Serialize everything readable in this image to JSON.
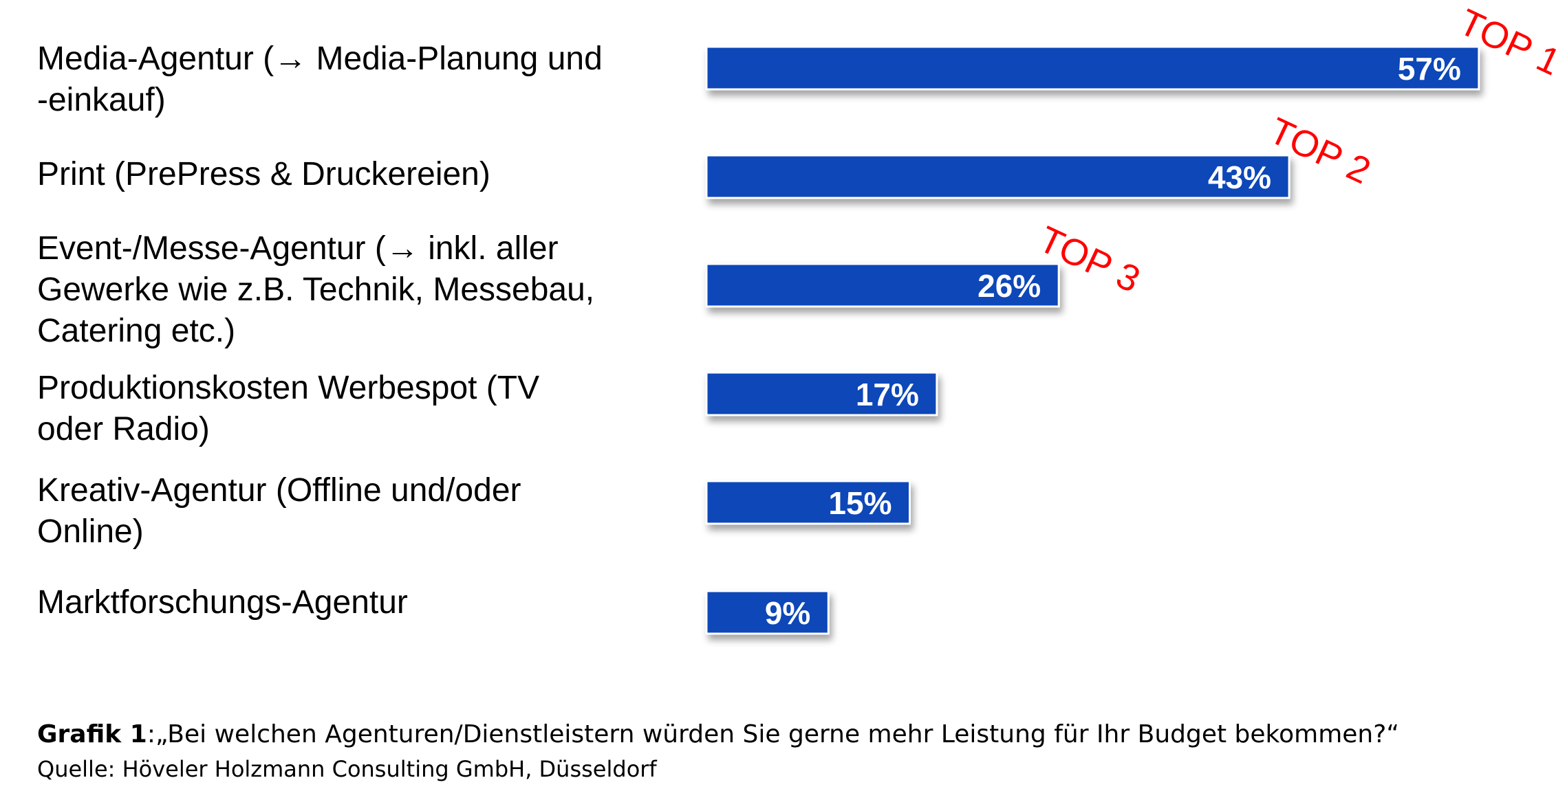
{
  "chart_data": {
    "type": "bar",
    "orientation": "horizontal",
    "categories": [
      "Media-Agentur (→ Media-Planung und\n-einkauf)",
      "Print (PrePress & Druckereien)",
      "Event-/Messe-Agentur (→ inkl. aller\nGewerke wie z.B. Technik, Messebau,\nCatering etc.)",
      "Produktionskosten Werbespot (TV\noder Radio)",
      "Kreativ-Agentur (Offline und/oder\nOnline)",
      "Marktforschungs-Agentur"
    ],
    "values": [
      57,
      43,
      26,
      17,
      15,
      9
    ],
    "value_labels": [
      "57%",
      "43%",
      "26%",
      "17%",
      "15%",
      "9%"
    ],
    "unit": "%",
    "xlim": [
      0,
      100
    ],
    "grid": false,
    "legend": "none",
    "annotations": [
      {
        "text": "TOP 1",
        "category_index": 0
      },
      {
        "text": "TOP 2",
        "category_index": 1
      },
      {
        "text": "TOP 3",
        "category_index": 2
      }
    ],
    "bar_color": "#0d47b8",
    "annotation_color": "#ff0000",
    "value_label_color": "#ffffff"
  },
  "caption": {
    "bold": "Grafik 1",
    "text": ":„Bei welchen Agenturen/Dienstleistern würden Sie gerne mehr Leistung für Ihr Budget bekommen?“",
    "source": "Quelle: Höveler Holzmann Consulting GmbH, Düsseldorf"
  }
}
